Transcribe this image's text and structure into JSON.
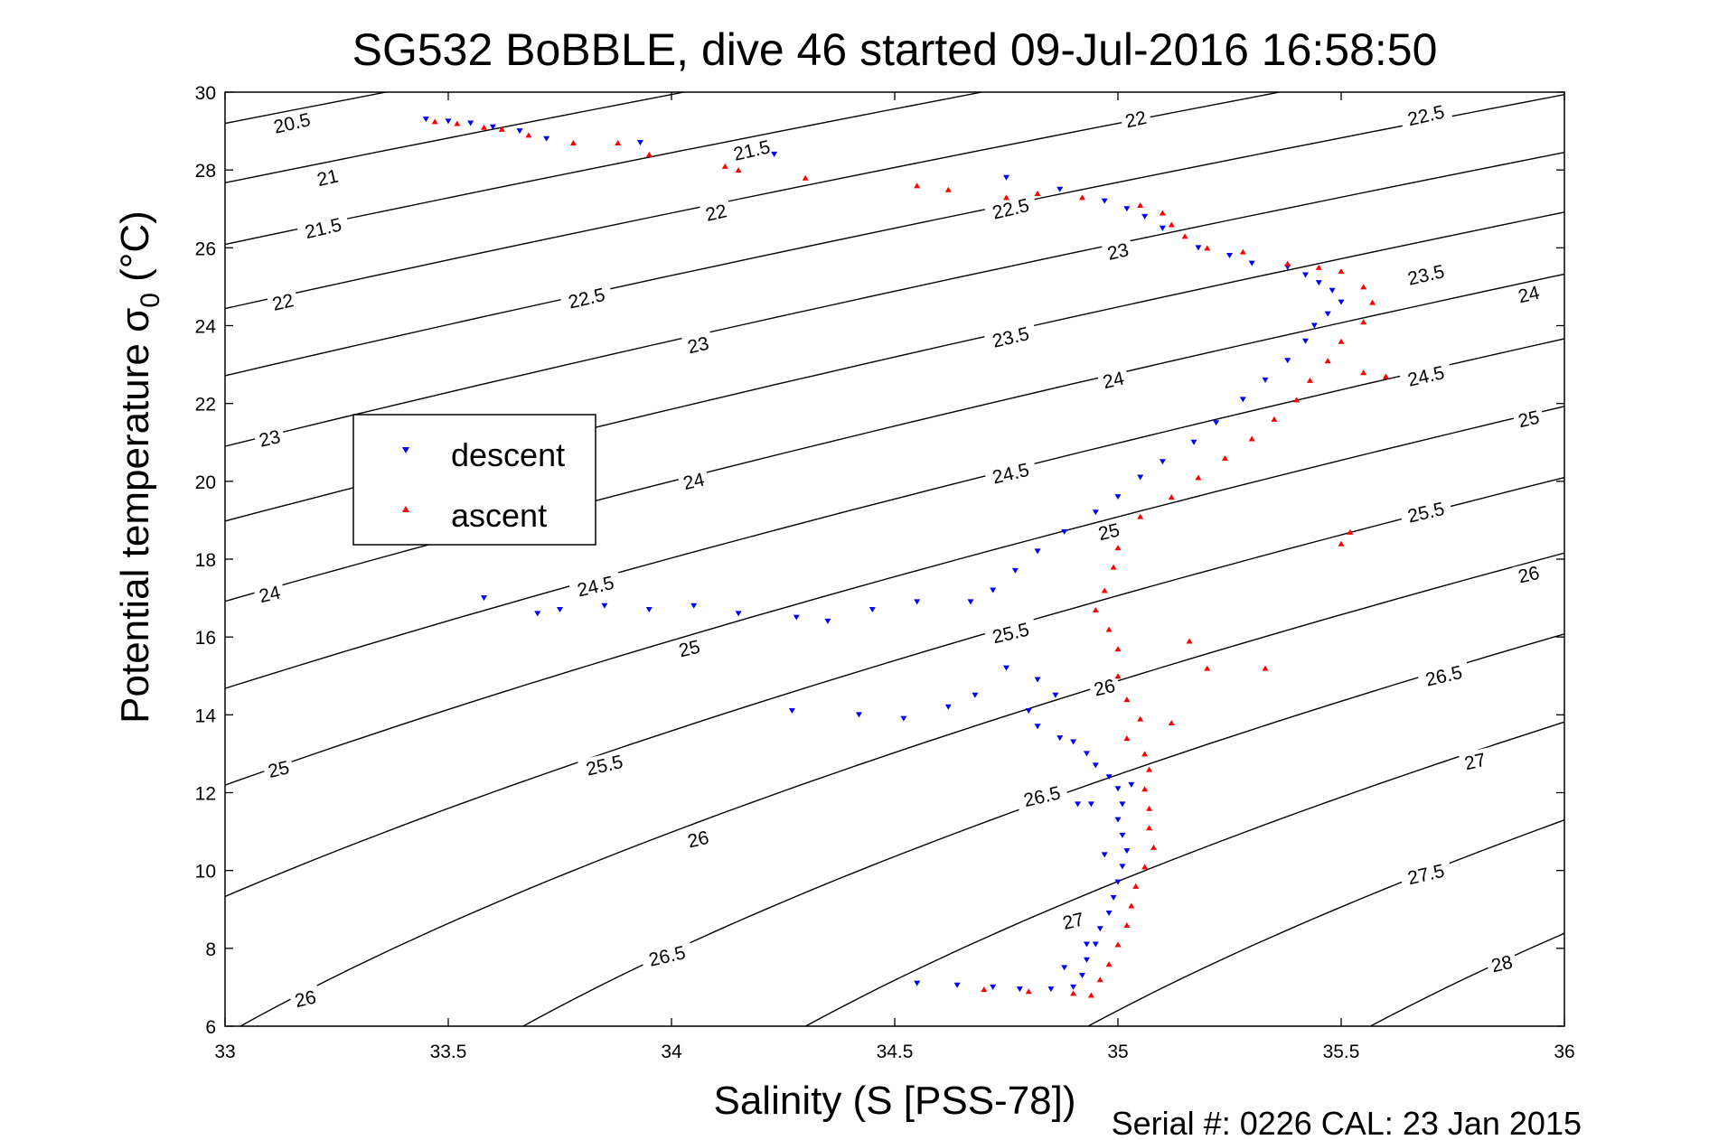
{
  "chart_data": {
    "type": "scatter",
    "title": "SG532 BoBBLE, dive 46 started 09-Jul-2016 16:58:50",
    "xlabel": "Salinity (S [PSS-78])",
    "ylabel_main": "Potential temperature σ",
    "ylabel_sub": "0",
    "ylabel_unit": " (°C)",
    "footer": "Serial #: 0226  CAL: 23 Jan 2015",
    "xlim": [
      33,
      36
    ],
    "ylim": [
      6,
      30
    ],
    "x_ticks": [
      33,
      33.5,
      34,
      34.5,
      35,
      35.5,
      36
    ],
    "x_tick_labels": [
      "33",
      "33.5",
      "34",
      "34.5",
      "35",
      "35.5",
      "36"
    ],
    "y_ticks": [
      6,
      8,
      10,
      12,
      14,
      16,
      18,
      20,
      22,
      24,
      26,
      28,
      30
    ],
    "y_tick_labels": [
      "6",
      "8",
      "10",
      "12",
      "14",
      "16",
      "18",
      "20",
      "22",
      "24",
      "26",
      "28",
      "30"
    ],
    "grid": false,
    "legend": {
      "placement": "left-center",
      "entries": [
        {
          "label": "descent",
          "color": "#0000ff",
          "marker": "triangle-down"
        },
        {
          "label": "ascent",
          "color": "#ff0000",
          "marker": "triangle-up"
        }
      ]
    },
    "contours": {
      "color": "#000000",
      "levels": [
        20.5,
        21,
        21.5,
        22,
        22.5,
        23,
        23.5,
        24,
        24.5,
        25,
        25.5,
        26,
        26.5,
        27,
        27.5,
        28
      ],
      "labels": [
        {
          "text": "20.5",
          "x": 33.15,
          "y": 29.2
        },
        {
          "text": "21",
          "x": 33.23,
          "y": 27.8
        },
        {
          "text": "21.5",
          "x": 33.22,
          "y": 26.5
        },
        {
          "text": "22",
          "x": 33.13,
          "y": 24.6
        },
        {
          "text": "23",
          "x": 33.1,
          "y": 21.1
        },
        {
          "text": "24",
          "x": 33.1,
          "y": 17.1
        },
        {
          "text": "25",
          "x": 33.12,
          "y": 12.6
        },
        {
          "text": "26",
          "x": 33.18,
          "y": 6.7
        },
        {
          "text": "21.5",
          "x": 34.18,
          "y": 28.5
        },
        {
          "text": "22",
          "x": 34.1,
          "y": 26.9
        },
        {
          "text": "22.5",
          "x": 33.81,
          "y": 24.7
        },
        {
          "text": "23",
          "x": 34.06,
          "y": 23.5
        },
        {
          "text": "24",
          "x": 34.05,
          "y": 20.0
        },
        {
          "text": "24.5",
          "x": 33.83,
          "y": 17.3
        },
        {
          "text": "25",
          "x": 34.04,
          "y": 15.7
        },
        {
          "text": "25.5",
          "x": 33.85,
          "y": 12.7
        },
        {
          "text": "26",
          "x": 34.06,
          "y": 10.8
        },
        {
          "text": "26.5",
          "x": 33.99,
          "y": 7.8
        },
        {
          "text": "22",
          "x": 35.04,
          "y": 29.3
        },
        {
          "text": "22.5",
          "x": 34.76,
          "y": 27.0
        },
        {
          "text": "23",
          "x": 35.0,
          "y": 25.9
        },
        {
          "text": "23.5",
          "x": 34.76,
          "y": 23.7
        },
        {
          "text": "24",
          "x": 34.99,
          "y": 22.6
        },
        {
          "text": "24.5",
          "x": 34.76,
          "y": 20.2
        },
        {
          "text": "25",
          "x": 34.98,
          "y": 18.7
        },
        {
          "text": "25.5",
          "x": 34.76,
          "y": 16.1
        },
        {
          "text": "26",
          "x": 34.97,
          "y": 14.7
        },
        {
          "text": "26.5",
          "x": 34.83,
          "y": 11.9
        },
        {
          "text": "27",
          "x": 34.9,
          "y": 8.7
        },
        {
          "text": "22.5",
          "x": 35.69,
          "y": 29.4
        },
        {
          "text": "23.5",
          "x": 35.69,
          "y": 25.3
        },
        {
          "text": "24",
          "x": 35.92,
          "y": 24.8
        },
        {
          "text": "24.5",
          "x": 35.69,
          "y": 22.7
        },
        {
          "text": "25",
          "x": 35.92,
          "y": 21.6
        },
        {
          "text": "25.5",
          "x": 35.69,
          "y": 19.2
        },
        {
          "text": "26",
          "x": 35.92,
          "y": 17.6
        },
        {
          "text": "26.5",
          "x": 35.73,
          "y": 15.0
        },
        {
          "text": "27",
          "x": 35.8,
          "y": 12.8
        },
        {
          "text": "27.5",
          "x": 35.69,
          "y": 9.9
        },
        {
          "text": "28",
          "x": 35.86,
          "y": 7.6
        }
      ]
    },
    "series": [
      {
        "name": "descent",
        "color": "#0000ff",
        "marker": "triangle-down",
        "points": [
          [
            33.45,
            29.3
          ],
          [
            33.5,
            29.25
          ],
          [
            33.55,
            29.2
          ],
          [
            33.6,
            29.1
          ],
          [
            33.66,
            29.0
          ],
          [
            33.72,
            28.8
          ],
          [
            33.93,
            28.7
          ],
          [
            34.23,
            28.4
          ],
          [
            34.75,
            27.8
          ],
          [
            34.87,
            27.5
          ],
          [
            34.97,
            27.2
          ],
          [
            35.02,
            27.0
          ],
          [
            35.06,
            26.8
          ],
          [
            35.1,
            26.5
          ],
          [
            35.18,
            26.0
          ],
          [
            35.25,
            25.8
          ],
          [
            35.3,
            25.6
          ],
          [
            35.38,
            25.5
          ],
          [
            35.42,
            25.3
          ],
          [
            35.45,
            25.1
          ],
          [
            35.48,
            24.9
          ],
          [
            35.5,
            24.6
          ],
          [
            35.47,
            24.3
          ],
          [
            35.44,
            24.0
          ],
          [
            35.42,
            23.6
          ],
          [
            35.38,
            23.1
          ],
          [
            35.33,
            22.6
          ],
          [
            35.28,
            22.1
          ],
          [
            35.22,
            21.5
          ],
          [
            35.17,
            21.0
          ],
          [
            35.1,
            20.5
          ],
          [
            35.05,
            20.1
          ],
          [
            35.0,
            19.6
          ],
          [
            34.95,
            19.2
          ],
          [
            34.88,
            18.7
          ],
          [
            34.82,
            18.2
          ],
          [
            34.77,
            17.7
          ],
          [
            34.72,
            17.2
          ],
          [
            34.67,
            16.9
          ],
          [
            34.55,
            16.9
          ],
          [
            34.45,
            16.7
          ],
          [
            34.35,
            16.4
          ],
          [
            34.28,
            16.5
          ],
          [
            34.15,
            16.6
          ],
          [
            34.05,
            16.8
          ],
          [
            33.95,
            16.7
          ],
          [
            33.85,
            16.8
          ],
          [
            33.75,
            16.7
          ],
          [
            33.58,
            17.0
          ],
          [
            33.7,
            16.6
          ],
          [
            34.27,
            14.1
          ],
          [
            34.42,
            14.0
          ],
          [
            34.52,
            13.9
          ],
          [
            34.62,
            14.2
          ],
          [
            34.68,
            14.5
          ],
          [
            34.75,
            15.2
          ],
          [
            34.82,
            14.9
          ],
          [
            34.86,
            14.5
          ],
          [
            34.8,
            14.1
          ],
          [
            34.82,
            13.7
          ],
          [
            34.87,
            13.4
          ],
          [
            34.9,
            13.3
          ],
          [
            34.93,
            13.0
          ],
          [
            34.95,
            12.7
          ],
          [
            34.98,
            12.4
          ],
          [
            35.0,
            12.1
          ],
          [
            35.01,
            11.7
          ],
          [
            35.0,
            11.3
          ],
          [
            35.01,
            10.9
          ],
          [
            35.02,
            10.5
          ],
          [
            35.01,
            10.1
          ],
          [
            35.0,
            9.7
          ],
          [
            34.99,
            9.3
          ],
          [
            34.98,
            8.9
          ],
          [
            34.96,
            8.5
          ],
          [
            34.95,
            8.1
          ],
          [
            34.93,
            7.7
          ],
          [
            34.92,
            7.3
          ],
          [
            34.9,
            7.0
          ],
          [
            34.85,
            6.95
          ],
          [
            34.78,
            6.95
          ],
          [
            34.72,
            7.0
          ],
          [
            34.64,
            7.05
          ],
          [
            34.55,
            7.1
          ],
          [
            34.88,
            7.5
          ],
          [
            34.91,
            11.7
          ],
          [
            34.94,
            11.7
          ],
          [
            34.97,
            10.4
          ],
          [
            34.93,
            8.1
          ],
          [
            35.03,
            12.2
          ]
        ]
      },
      {
        "name": "ascent",
        "color": "#ff0000",
        "marker": "triangle-up",
        "points": [
          [
            33.47,
            29.25
          ],
          [
            33.52,
            29.2
          ],
          [
            33.58,
            29.1
          ],
          [
            33.62,
            29.05
          ],
          [
            33.68,
            28.9
          ],
          [
            33.78,
            28.7
          ],
          [
            33.88,
            28.7
          ],
          [
            33.95,
            28.4
          ],
          [
            34.12,
            28.1
          ],
          [
            34.15,
            28.0
          ],
          [
            34.3,
            27.8
          ],
          [
            34.55,
            27.6
          ],
          [
            34.62,
            27.5
          ],
          [
            34.75,
            27.3
          ],
          [
            34.82,
            27.4
          ],
          [
            34.92,
            27.3
          ],
          [
            35.05,
            27.1
          ],
          [
            35.1,
            26.9
          ],
          [
            35.12,
            26.6
          ],
          [
            35.15,
            26.3
          ],
          [
            35.2,
            26.0
          ],
          [
            35.28,
            25.9
          ],
          [
            35.38,
            25.6
          ],
          [
            35.45,
            25.5
          ],
          [
            35.5,
            25.4
          ],
          [
            35.55,
            25.0
          ],
          [
            35.57,
            24.6
          ],
          [
            35.55,
            24.1
          ],
          [
            35.5,
            23.6
          ],
          [
            35.47,
            23.1
          ],
          [
            35.43,
            22.6
          ],
          [
            35.55,
            22.8
          ],
          [
            35.6,
            22.7
          ],
          [
            35.4,
            22.1
          ],
          [
            35.35,
            21.6
          ],
          [
            35.3,
            21.1
          ],
          [
            35.24,
            20.6
          ],
          [
            35.18,
            20.1
          ],
          [
            35.12,
            19.6
          ],
          [
            35.05,
            19.1
          ],
          [
            35.52,
            18.7
          ],
          [
            35.5,
            18.4
          ],
          [
            35.0,
            18.3
          ],
          [
            34.99,
            17.8
          ],
          [
            34.97,
            17.2
          ],
          [
            34.95,
            16.7
          ],
          [
            34.98,
            16.2
          ],
          [
            35.0,
            15.7
          ],
          [
            35.16,
            15.9
          ],
          [
            35.2,
            15.2
          ],
          [
            35.33,
            15.2
          ],
          [
            35.0,
            15.0
          ],
          [
            35.02,
            14.4
          ],
          [
            35.05,
            13.9
          ],
          [
            35.12,
            13.8
          ],
          [
            35.02,
            13.4
          ],
          [
            35.06,
            13.0
          ],
          [
            35.07,
            12.6
          ],
          [
            35.06,
            12.1
          ],
          [
            35.07,
            11.6
          ],
          [
            35.07,
            11.1
          ],
          [
            35.08,
            10.6
          ],
          [
            35.06,
            10.1
          ],
          [
            35.04,
            9.6
          ],
          [
            35.03,
            9.1
          ],
          [
            35.02,
            8.6
          ],
          [
            35.0,
            8.1
          ],
          [
            34.98,
            7.6
          ],
          [
            34.96,
            7.2
          ],
          [
            34.94,
            6.8
          ],
          [
            34.9,
            6.85
          ],
          [
            34.8,
            6.9
          ],
          [
            34.7,
            6.95
          ]
        ]
      }
    ]
  }
}
